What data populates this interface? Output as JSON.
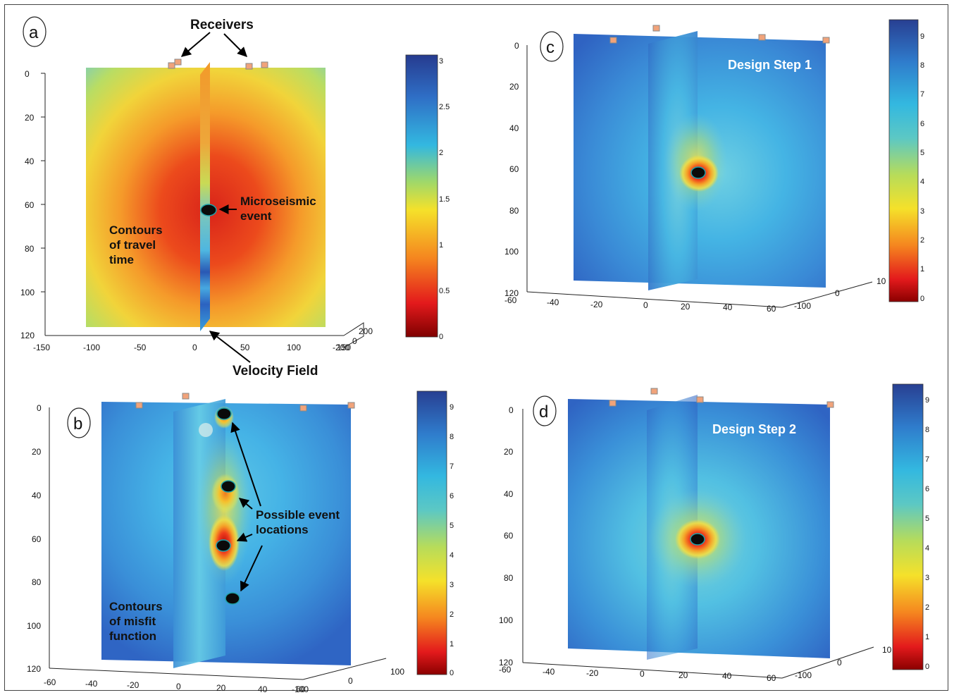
{
  "panels": {
    "a": {
      "label": "a",
      "y_ticks": [
        "0",
        "20",
        "40",
        "60",
        "80",
        "100",
        "120"
      ],
      "x_ticks": [
        "-150",
        "-100",
        "-50",
        "0",
        "50",
        "100",
        "-200"
      ],
      "x_overlap_tick": "150",
      "z_ticks": [
        "200",
        "0"
      ],
      "colorbar_ticks": [
        "3",
        "2.5",
        "2",
        "1.5",
        "1",
        "0.5",
        "0"
      ],
      "annotations": {
        "receivers": "Receivers",
        "microseismic_line1": "Microseismic",
        "microseismic_line2": "event",
        "contours_line1": "Contours",
        "contours_line2": "of travel",
        "contours_line3": "time",
        "velocity_field": "Velocity Field"
      }
    },
    "b": {
      "label": "b",
      "y_ticks": [
        "0",
        "20",
        "40",
        "60",
        "80",
        "100",
        "120"
      ],
      "x_ticks": [
        "-60",
        "-40",
        "-20",
        "0",
        "20",
        "40",
        "-100"
      ],
      "x_overlap_tick": "60",
      "z_ticks": [
        "100",
        "0"
      ],
      "colorbar_ticks": [
        "9",
        "8",
        "7",
        "6",
        "5",
        "4",
        "3",
        "2",
        "1",
        "0"
      ],
      "annotations": {
        "possible_line1": "Possible event",
        "possible_line2": "locations",
        "contours_line1": "Contours",
        "contours_line2": "of misfit",
        "contours_line3": "function"
      }
    },
    "c": {
      "label": "c",
      "title": "Design Step 1",
      "y_ticks": [
        "0",
        "20",
        "40",
        "60",
        "80",
        "100",
        "120"
      ],
      "x_ticks": [
        "-60",
        "-40",
        "-20",
        "0",
        "20",
        "40",
        "60"
      ],
      "z_ticks": [
        "10",
        "0",
        "-100"
      ],
      "colorbar_ticks": [
        "9",
        "8",
        "7",
        "6",
        "5",
        "4",
        "3",
        "2",
        "1",
        "0"
      ]
    },
    "d": {
      "label": "d",
      "title": "Design Step 2",
      "y_ticks": [
        "0",
        "20",
        "40",
        "60",
        "80",
        "100",
        "120"
      ],
      "x_ticks": [
        "-60",
        "-40",
        "-20",
        "0",
        "20",
        "40",
        "60"
      ],
      "z_ticks": [
        "10",
        "0",
        "-100"
      ],
      "colorbar_ticks": [
        "9",
        "8",
        "7",
        "6",
        "5",
        "4",
        "3",
        "2",
        "1",
        "0"
      ]
    }
  },
  "colors": {
    "jet_dark_red": "#7f0000",
    "jet_red": "#e31a1c",
    "jet_orange": "#f57c1f",
    "jet_yellow": "#f5e12a",
    "jet_cyan": "#33b8e0",
    "jet_blue": "#2f6fc6",
    "jet_dark_blue": "#263b8f",
    "receiver_fill": "#f1a37a",
    "receiver_core": "#7fc8d8"
  }
}
